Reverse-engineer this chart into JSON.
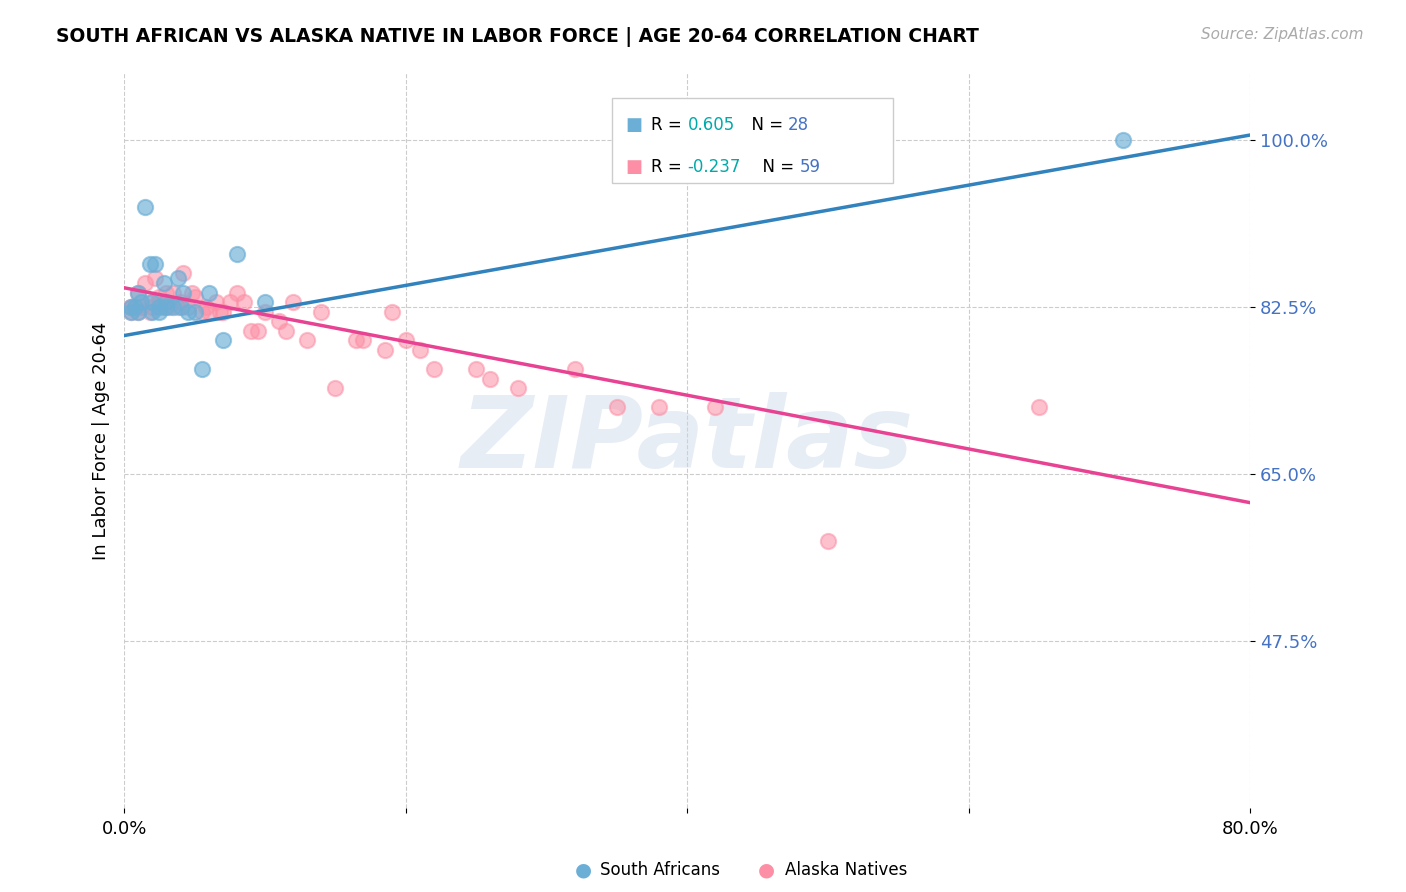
{
  "title": "SOUTH AFRICAN VS ALASKA NATIVE IN LABOR FORCE | AGE 20-64 CORRELATION CHART",
  "source": "Source: ZipAtlas.com",
  "ylabel": "In Labor Force | Age 20-64",
  "ytick_labels": [
    "100.0%",
    "82.5%",
    "65.0%",
    "47.5%"
  ],
  "ytick_values": [
    1.0,
    0.825,
    0.65,
    0.475
  ],
  "xlim": [
    0.0,
    0.8
  ],
  "ylim": [
    0.3,
    1.07
  ],
  "blue_R": "0.605",
  "blue_N": "28",
  "pink_R": "-0.237",
  "pink_N": "59",
  "blue_color": "#6BAED6",
  "pink_color": "#FC8FA5",
  "line_blue": "#3182BD",
  "line_pink": "#E84393",
  "watermark": "ZIPatlas",
  "blue_scatter_x": [
    0.005,
    0.005,
    0.008,
    0.01,
    0.01,
    0.012,
    0.015,
    0.018,
    0.02,
    0.02,
    0.022,
    0.025,
    0.025,
    0.028,
    0.03,
    0.03,
    0.035,
    0.038,
    0.04,
    0.042,
    0.045,
    0.05,
    0.055,
    0.06,
    0.07,
    0.08,
    0.1,
    0.71
  ],
  "blue_scatter_y": [
    0.825,
    0.82,
    0.825,
    0.84,
    0.82,
    0.83,
    0.93,
    0.87,
    0.83,
    0.82,
    0.87,
    0.825,
    0.82,
    0.85,
    0.83,
    0.825,
    0.825,
    0.855,
    0.825,
    0.84,
    0.82,
    0.82,
    0.76,
    0.84,
    0.79,
    0.88,
    0.83,
    1.0
  ],
  "pink_scatter_x": [
    0.005,
    0.005,
    0.005,
    0.008,
    0.01,
    0.01,
    0.012,
    0.015,
    0.018,
    0.018,
    0.02,
    0.022,
    0.025,
    0.025,
    0.028,
    0.028,
    0.03,
    0.032,
    0.035,
    0.038,
    0.04,
    0.042,
    0.045,
    0.048,
    0.05,
    0.055,
    0.058,
    0.06,
    0.065,
    0.068,
    0.07,
    0.075,
    0.08,
    0.085,
    0.09,
    0.095,
    0.1,
    0.11,
    0.115,
    0.12,
    0.13,
    0.14,
    0.15,
    0.165,
    0.17,
    0.185,
    0.19,
    0.2,
    0.21,
    0.22,
    0.25,
    0.26,
    0.28,
    0.32,
    0.35,
    0.38,
    0.42,
    0.5,
    0.65
  ],
  "pink_scatter_y": [
    0.825,
    0.82,
    0.825,
    0.825,
    0.84,
    0.82,
    0.825,
    0.85,
    0.83,
    0.82,
    0.825,
    0.855,
    0.835,
    0.83,
    0.83,
    0.825,
    0.84,
    0.825,
    0.84,
    0.825,
    0.83,
    0.86,
    0.825,
    0.84,
    0.835,
    0.82,
    0.825,
    0.82,
    0.83,
    0.82,
    0.82,
    0.83,
    0.84,
    0.83,
    0.8,
    0.8,
    0.82,
    0.81,
    0.8,
    0.83,
    0.79,
    0.82,
    0.74,
    0.79,
    0.79,
    0.78,
    0.82,
    0.79,
    0.78,
    0.76,
    0.76,
    0.75,
    0.74,
    0.76,
    0.72,
    0.72,
    0.72,
    0.58,
    0.72
  ],
  "blue_line_x0": 0.0,
  "blue_line_x1": 0.8,
  "blue_line_y0": 0.795,
  "blue_line_y1": 1.005,
  "pink_line_x0": 0.0,
  "pink_line_x1": 0.8,
  "pink_line_y0": 0.845,
  "pink_line_y1": 0.62
}
